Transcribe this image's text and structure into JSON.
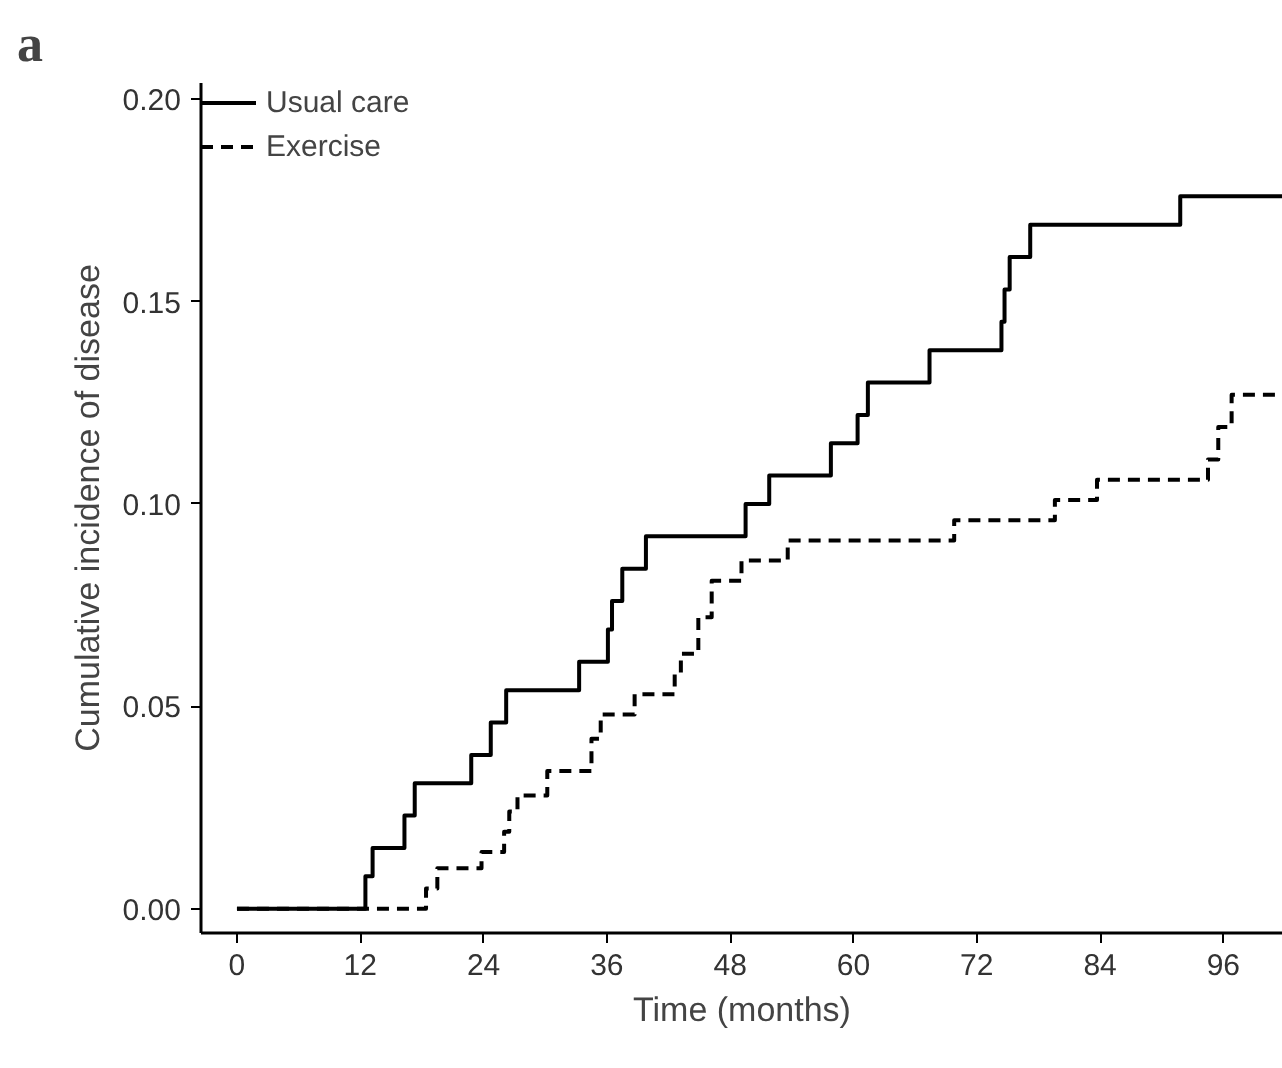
{
  "chart_data": {
    "type": "step",
    "title": "a",
    "xlabel": "Time (months)",
    "ylabel": "Cumulative incidence of disease",
    "xlim": [
      -3.5,
      101.8
    ],
    "ylim": [
      -0.006,
      0.204
    ],
    "xticks": [
      0,
      12,
      24,
      36,
      48,
      60,
      72,
      84,
      96
    ],
    "yticks": [
      {
        "value": 0,
        "label": "0.00"
      },
      {
        "value": 0.05,
        "label": "0.05"
      },
      {
        "value": 0.1,
        "label": "0.10"
      },
      {
        "value": 0.15,
        "label": "0.15"
      },
      {
        "value": 0.2,
        "label": "0.20"
      }
    ],
    "grid": false,
    "legend": "top left",
    "series": [
      {
        "name": "Usual care",
        "color": "#000000",
        "line_style": "solid",
        "x": [
          0,
          12.5,
          13.2,
          16.3,
          17.3,
          22.8,
          24.7,
          26.2,
          33.3,
          36.1,
          36.5,
          37.5,
          39.8,
          49.5,
          51.8,
          57.8,
          60.4,
          61.4,
          67.4,
          74.4,
          74.7,
          75.2,
          77.2,
          91.8,
          101.8
        ],
        "values": [
          0,
          0.008,
          0.015,
          0.023,
          0.031,
          0.038,
          0.046,
          0.054,
          0.061,
          0.069,
          0.076,
          0.084,
          0.092,
          0.1,
          0.107,
          0.115,
          0.122,
          0.13,
          0.138,
          0.145,
          0.153,
          0.161,
          0.169,
          0.176,
          0.176
        ]
      },
      {
        "name": "Exercise",
        "color": "#000000",
        "line_style": "dashed",
        "x": [
          0,
          18.4,
          19.5,
          23.8,
          26.0,
          26.5,
          27.3,
          30.2,
          34.5,
          35.4,
          38.7,
          42.6,
          43.2,
          44.9,
          46.2,
          49.1,
          53.6,
          69.8,
          79.6,
          83.7,
          94.5,
          95.5,
          96.8,
          101.8
        ],
        "values": [
          0,
          0.005,
          0.01,
          0.014,
          0.019,
          0.024,
          0.028,
          0.034,
          0.042,
          0.048,
          0.053,
          0.058,
          0.063,
          0.072,
          0.081,
          0.086,
          0.091,
          0.096,
          0.101,
          0.106,
          0.111,
          0.119,
          0.127,
          0.127
        ]
      }
    ]
  }
}
